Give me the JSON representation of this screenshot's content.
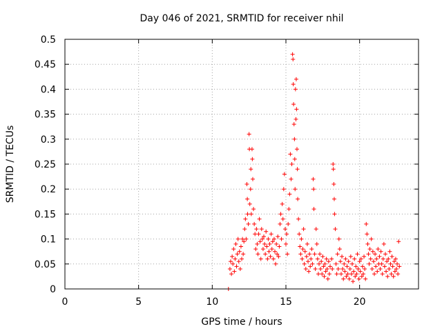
{
  "chart_data": {
    "type": "scatter",
    "title": "Day 046 of 2021, SRMTID for receiver nhil",
    "xlabel": "GPS time / hours",
    "ylabel": "SRMTID / TECUs",
    "xlim": [
      0,
      24
    ],
    "ylim": [
      0,
      0.5
    ],
    "x_ticks": [
      0,
      5,
      10,
      15,
      20
    ],
    "y_ticks": [
      0,
      0.05,
      0.1,
      0.15,
      0.2,
      0.25,
      0.3,
      0.35,
      0.4,
      0.45,
      0.5
    ],
    "x_tick_labels": [
      "0",
      "5",
      "10",
      "15",
      "20"
    ],
    "y_tick_labels": [
      "0",
      "0.05",
      "0.1",
      "0.15",
      "0.2",
      "0.25",
      "0.3",
      "0.35",
      "0.4",
      "0.45",
      "0.5"
    ],
    "grid": true,
    "marker": "+",
    "color": "#ff0000",
    "series": [
      {
        "name": "SRMTID",
        "points": [
          [
            11.1,
            0.0
          ],
          [
            11.2,
            0.04
          ],
          [
            11.25,
            0.055
          ],
          [
            11.3,
            0.03
          ],
          [
            11.35,
            0.065
          ],
          [
            11.4,
            0.05
          ],
          [
            11.45,
            0.08
          ],
          [
            11.5,
            0.035
          ],
          [
            11.55,
            0.06
          ],
          [
            11.6,
            0.09
          ],
          [
            11.65,
            0.045
          ],
          [
            11.7,
            0.07
          ],
          [
            11.75,
            0.1
          ],
          [
            11.8,
            0.055
          ],
          [
            11.85,
            0.075
          ],
          [
            11.9,
            0.04
          ],
          [
            11.95,
            0.085
          ],
          [
            12.0,
            0.06
          ],
          [
            12.05,
            0.1
          ],
          [
            12.1,
            0.07
          ],
          [
            12.15,
            0.095
          ],
          [
            12.2,
            0.12
          ],
          [
            12.25,
            0.14
          ],
          [
            12.3,
            0.1
          ],
          [
            12.35,
            0.21
          ],
          [
            12.38,
            0.18
          ],
          [
            12.4,
            0.15
          ],
          [
            12.45,
            0.13
          ],
          [
            12.5,
            0.31
          ],
          [
            12.52,
            0.28
          ],
          [
            12.55,
            0.17
          ],
          [
            12.6,
            0.2
          ],
          [
            12.62,
            0.24
          ],
          [
            12.65,
            0.15
          ],
          [
            12.7,
            0.28
          ],
          [
            12.72,
            0.26
          ],
          [
            12.75,
            0.22
          ],
          [
            12.8,
            0.16
          ],
          [
            12.85,
            0.13
          ],
          [
            12.9,
            0.11
          ],
          [
            12.95,
            0.08
          ],
          [
            13.0,
            0.12
          ],
          [
            13.05,
            0.09
          ],
          [
            13.1,
            0.07
          ],
          [
            13.15,
            0.11
          ],
          [
            13.2,
            0.14
          ],
          [
            13.25,
            0.095
          ],
          [
            13.3,
            0.06
          ],
          [
            13.35,
            0.12
          ],
          [
            13.4,
            0.1
          ],
          [
            13.45,
            0.08
          ],
          [
            13.5,
            0.105
          ],
          [
            13.55,
            0.09
          ],
          [
            13.6,
            0.07
          ],
          [
            13.65,
            0.115
          ],
          [
            13.7,
            0.085
          ],
          [
            13.75,
            0.06
          ],
          [
            13.8,
            0.1
          ],
          [
            13.85,
            0.075
          ],
          [
            13.9,
            0.09
          ],
          [
            13.95,
            0.065
          ],
          [
            14.0,
            0.11
          ],
          [
            14.05,
            0.08
          ],
          [
            14.1,
            0.095
          ],
          [
            14.15,
            0.06
          ],
          [
            14.2,
            0.1
          ],
          [
            14.25,
            0.075
          ],
          [
            14.3,
            0.05
          ],
          [
            14.35,
            0.09
          ],
          [
            14.4,
            0.07
          ],
          [
            14.45,
            0.105
          ],
          [
            14.5,
            0.065
          ],
          [
            14.55,
            0.085
          ],
          [
            14.6,
            0.13
          ],
          [
            14.65,
            0.15
          ],
          [
            14.7,
            0.1
          ],
          [
            14.75,
            0.17
          ],
          [
            14.8,
            0.14
          ],
          [
            14.85,
            0.2
          ],
          [
            14.9,
            0.23
          ],
          [
            14.95,
            0.12
          ],
          [
            15.0,
            0.09
          ],
          [
            15.05,
            0.11
          ],
          [
            15.1,
            0.07
          ],
          [
            15.15,
            0.13
          ],
          [
            15.2,
            0.16
          ],
          [
            15.25,
            0.19
          ],
          [
            15.3,
            0.27
          ],
          [
            15.35,
            0.22
          ],
          [
            15.4,
            0.25
          ],
          [
            15.45,
            0.47
          ],
          [
            15.48,
            0.46
          ],
          [
            15.5,
            0.41
          ],
          [
            15.52,
            0.37
          ],
          [
            15.55,
            0.33
          ],
          [
            15.58,
            0.3
          ],
          [
            15.6,
            0.26
          ],
          [
            15.62,
            0.2
          ],
          [
            15.65,
            0.4
          ],
          [
            15.68,
            0.34
          ],
          [
            15.7,
            0.42
          ],
          [
            15.72,
            0.36
          ],
          [
            15.75,
            0.28
          ],
          [
            15.78,
            0.24
          ],
          [
            15.8,
            0.18
          ],
          [
            15.85,
            0.14
          ],
          [
            15.9,
            0.11
          ],
          [
            15.95,
            0.085
          ],
          [
            16.0,
            0.07
          ],
          [
            16.05,
            0.1
          ],
          [
            16.1,
            0.06
          ],
          [
            16.15,
            0.08
          ],
          [
            16.2,
            0.12
          ],
          [
            16.25,
            0.05
          ],
          [
            16.3,
            0.075
          ],
          [
            16.35,
            0.04
          ],
          [
            16.4,
            0.065
          ],
          [
            16.45,
            0.09
          ],
          [
            16.5,
            0.055
          ],
          [
            16.55,
            0.035
          ],
          [
            16.6,
            0.07
          ],
          [
            16.65,
            0.045
          ],
          [
            16.7,
            0.06
          ],
          [
            16.75,
            0.08
          ],
          [
            16.8,
            0.05
          ],
          [
            16.85,
            0.22
          ],
          [
            16.88,
            0.2
          ],
          [
            16.9,
            0.16
          ],
          [
            16.95,
            0.07
          ],
          [
            17.0,
            0.04
          ],
          [
            17.05,
            0.12
          ],
          [
            17.1,
            0.09
          ],
          [
            17.15,
            0.06
          ],
          [
            17.2,
            0.03
          ],
          [
            17.25,
            0.05
          ],
          [
            17.3,
            0.07
          ],
          [
            17.35,
            0.04
          ],
          [
            17.4,
            0.055
          ],
          [
            17.45,
            0.03
          ],
          [
            17.5,
            0.065
          ],
          [
            17.55,
            0.045
          ],
          [
            17.6,
            0.025
          ],
          [
            17.65,
            0.05
          ],
          [
            17.7,
            0.035
          ],
          [
            17.75,
            0.06
          ],
          [
            17.8,
            0.04
          ],
          [
            17.85,
            0.02
          ],
          [
            17.9,
            0.055
          ],
          [
            17.95,
            0.03
          ],
          [
            18.0,
            0.045
          ],
          [
            18.1,
            0.06
          ],
          [
            18.15,
            0.04
          ],
          [
            18.2,
            0.25
          ],
          [
            18.22,
            0.24
          ],
          [
            18.25,
            0.21
          ],
          [
            18.28,
            0.18
          ],
          [
            18.3,
            0.15
          ],
          [
            18.35,
            0.12
          ],
          [
            18.4,
            0.05
          ],
          [
            18.45,
            0.03
          ],
          [
            18.5,
            0.07
          ],
          [
            18.55,
            0.04
          ],
          [
            18.6,
            0.1
          ],
          [
            18.65,
            0.08
          ],
          [
            18.7,
            0.055
          ],
          [
            18.75,
            0.03
          ],
          [
            18.8,
            0.065
          ],
          [
            18.85,
            0.04
          ],
          [
            18.9,
            0.02
          ],
          [
            18.95,
            0.05
          ],
          [
            19.0,
            0.035
          ],
          [
            19.05,
            0.06
          ],
          [
            19.1,
            0.025
          ],
          [
            19.15,
            0.045
          ],
          [
            19.2,
            0.03
          ],
          [
            19.25,
            0.055
          ],
          [
            19.3,
            0.02
          ],
          [
            19.35,
            0.04
          ],
          [
            19.4,
            0.065
          ],
          [
            19.45,
            0.03
          ],
          [
            19.5,
            0.05
          ],
          [
            19.55,
            0.015
          ],
          [
            19.6,
            0.035
          ],
          [
            19.65,
            0.06
          ],
          [
            19.7,
            0.025
          ],
          [
            19.75,
            0.045
          ],
          [
            19.8,
            0.03
          ],
          [
            19.85,
            0.07
          ],
          [
            19.9,
            0.04
          ],
          [
            19.95,
            0.02
          ],
          [
            20.0,
            0.055
          ],
          [
            20.05,
            0.035
          ],
          [
            20.1,
            0.06
          ],
          [
            20.15,
            0.025
          ],
          [
            20.2,
            0.045
          ],
          [
            20.25,
            0.03
          ],
          [
            20.3,
            0.065
          ],
          [
            20.35,
            0.04
          ],
          [
            20.4,
            0.02
          ],
          [
            20.45,
            0.13
          ],
          [
            20.5,
            0.11
          ],
          [
            20.55,
            0.09
          ],
          [
            20.6,
            0.07
          ],
          [
            20.65,
            0.05
          ],
          [
            20.7,
            0.08
          ],
          [
            20.75,
            0.06
          ],
          [
            20.8,
            0.1
          ],
          [
            20.85,
            0.04
          ],
          [
            20.9,
            0.075
          ],
          [
            20.95,
            0.055
          ],
          [
            21.0,
            0.03
          ],
          [
            21.05,
            0.07
          ],
          [
            21.1,
            0.045
          ],
          [
            21.15,
            0.06
          ],
          [
            21.2,
            0.035
          ],
          [
            21.25,
            0.08
          ],
          [
            21.3,
            0.05
          ],
          [
            21.35,
            0.065
          ],
          [
            21.4,
            0.04
          ],
          [
            21.45,
            0.075
          ],
          [
            21.5,
            0.05
          ],
          [
            21.55,
            0.03
          ],
          [
            21.6,
            0.06
          ],
          [
            21.65,
            0.09
          ],
          [
            21.7,
            0.045
          ],
          [
            21.75,
            0.07
          ],
          [
            21.8,
            0.035
          ],
          [
            21.85,
            0.055
          ],
          [
            21.9,
            0.025
          ],
          [
            21.95,
            0.06
          ],
          [
            22.0,
            0.04
          ],
          [
            22.05,
            0.075
          ],
          [
            22.1,
            0.05
          ],
          [
            22.15,
            0.03
          ],
          [
            22.2,
            0.065
          ],
          [
            22.25,
            0.045
          ],
          [
            22.3,
            0.025
          ],
          [
            22.35,
            0.055
          ],
          [
            22.4,
            0.035
          ],
          [
            22.45,
            0.06
          ],
          [
            22.5,
            0.04
          ],
          [
            22.55,
            0.05
          ],
          [
            22.6,
            0.03
          ],
          [
            22.65,
            0.095
          ],
          [
            22.7,
            0.045
          ]
        ]
      }
    ]
  }
}
